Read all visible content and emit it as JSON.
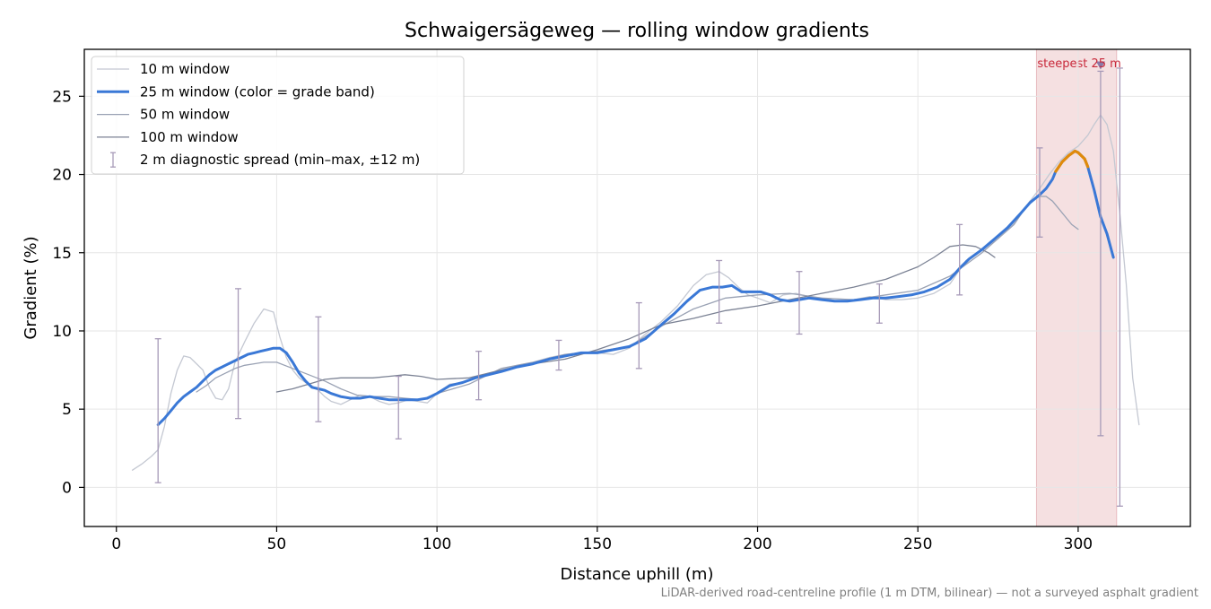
{
  "chart_data": {
    "type": "line",
    "title": "Schwaigersägeweg — rolling window gradients",
    "xlabel": "Distance uphill (m)",
    "ylabel": "Gradient (%)",
    "xlim": [
      -10,
      335
    ],
    "ylim": [
      -2.5,
      28
    ],
    "xticks": [
      0,
      50,
      100,
      150,
      200,
      250,
      300
    ],
    "yticks": [
      0,
      5,
      10,
      15,
      20,
      25
    ],
    "grid": true,
    "legend_position": "upper-left",
    "footnote": "LiDAR-derived road-centreline profile (1 m DTM, bilinear) — not a surveyed asphalt gradient",
    "highlight": {
      "label": "steepest 25 m",
      "x_range": [
        287,
        312
      ],
      "marker_x": 307,
      "marker_y": 27,
      "color": "#e8b4b8"
    },
    "series": [
      {
        "name": "10 m window",
        "color": "#c4c8d2",
        "width": 1.3,
        "x": [
          5,
          8,
          11,
          13,
          15,
          17,
          19,
          21,
          23,
          25,
          27,
          29,
          31,
          33,
          35,
          37,
          40,
          43,
          46,
          49,
          51,
          53,
          55,
          57,
          59,
          61,
          63,
          65,
          67,
          70,
          73,
          76,
          79,
          82,
          85,
          88,
          91,
          94,
          97,
          100,
          104,
          108,
          112,
          116,
          120,
          125,
          130,
          135,
          140,
          145,
          150,
          155,
          160,
          165,
          170,
          175,
          180,
          184,
          188,
          191,
          194,
          197,
          200,
          204,
          208,
          212,
          216,
          220,
          225,
          230,
          235,
          240,
          245,
          250,
          255,
          260,
          265,
          270,
          275,
          280,
          285,
          288,
          291,
          294,
          297,
          300,
          303,
          305,
          307,
          309,
          311,
          313,
          315,
          317,
          319
        ],
        "y": [
          1.1,
          1.5,
          2.0,
          2.4,
          3.9,
          6.0,
          7.5,
          8.4,
          8.3,
          7.9,
          7.5,
          6.4,
          5.7,
          5.6,
          6.3,
          8.0,
          9.3,
          10.5,
          11.4,
          11.2,
          9.6,
          8.3,
          7.5,
          7.0,
          6.7,
          6.5,
          6.2,
          5.8,
          5.5,
          5.3,
          5.6,
          5.9,
          5.8,
          5.5,
          5.3,
          5.4,
          5.6,
          5.5,
          5.4,
          6.0,
          6.6,
          6.7,
          7.0,
          7.3,
          7.5,
          7.8,
          8.0,
          8.3,
          8.5,
          8.6,
          8.6,
          8.5,
          8.9,
          9.8,
          10.6,
          11.6,
          12.9,
          13.6,
          13.8,
          13.4,
          12.8,
          12.3,
          12.1,
          11.8,
          12.3,
          12.4,
          12.2,
          12.1,
          11.9,
          12.0,
          12.2,
          12.0,
          12.0,
          12.1,
          12.4,
          13.0,
          14.5,
          15.2,
          15.9,
          16.9,
          18.3,
          19.1,
          20.0,
          20.8,
          21.4,
          21.8,
          22.5,
          23.2,
          23.8,
          23.2,
          21.5,
          17.5,
          13.0,
          7.0,
          4.0
        ]
      },
      {
        "name": "25 m window (color = grade band)",
        "color": "#3a78d6",
        "band_color": "#e08a0a",
        "band_x_range": [
          293,
          303
        ],
        "width": 3,
        "x": [
          13,
          15,
          17,
          19,
          21,
          23,
          25,
          27,
          29,
          31,
          33,
          35,
          37,
          39,
          41,
          43,
          45,
          47,
          49,
          51,
          53,
          55,
          57,
          59,
          61,
          63,
          65,
          67,
          70,
          73,
          76,
          79,
          82,
          85,
          88,
          91,
          94,
          97,
          100,
          104,
          108,
          112,
          116,
          120,
          125,
          130,
          135,
          140,
          145,
          150,
          155,
          160,
          165,
          170,
          174,
          178,
          182,
          186,
          189,
          192,
          195,
          198,
          201,
          204,
          207,
          210,
          213,
          216,
          220,
          224,
          228,
          232,
          236,
          240,
          244,
          248,
          252,
          256,
          260,
          263,
          266,
          270,
          274,
          278,
          282,
          285,
          288,
          290,
          292,
          293,
          295,
          297,
          299,
          300,
          302,
          303,
          305,
          307,
          309,
          311
        ],
        "y": [
          4.0,
          4.4,
          4.9,
          5.4,
          5.8,
          6.1,
          6.4,
          6.8,
          7.2,
          7.5,
          7.7,
          7.9,
          8.1,
          8.3,
          8.5,
          8.6,
          8.7,
          8.8,
          8.9,
          8.9,
          8.6,
          8.0,
          7.3,
          6.8,
          6.4,
          6.3,
          6.2,
          6.0,
          5.8,
          5.7,
          5.7,
          5.8,
          5.7,
          5.6,
          5.6,
          5.6,
          5.6,
          5.7,
          6.0,
          6.5,
          6.7,
          7.0,
          7.2,
          7.4,
          7.7,
          7.9,
          8.2,
          8.4,
          8.6,
          8.6,
          8.8,
          9.0,
          9.5,
          10.4,
          11.1,
          11.9,
          12.6,
          12.8,
          12.8,
          12.9,
          12.5,
          12.5,
          12.5,
          12.3,
          12.0,
          11.9,
          12.0,
          12.1,
          12.0,
          11.9,
          11.9,
          12.0,
          12.1,
          12.1,
          12.2,
          12.3,
          12.5,
          12.8,
          13.3,
          14.0,
          14.6,
          15.2,
          15.9,
          16.6,
          17.5,
          18.2,
          18.7,
          19.1,
          19.7,
          20.2,
          20.8,
          21.2,
          21.5,
          21.4,
          21.0,
          20.5,
          19.0,
          17.3,
          16.2,
          14.7
        ]
      },
      {
        "name": "50 m window",
        "color": "#9aa2b4",
        "width": 1.3,
        "x": [
          25,
          28,
          31,
          34,
          37,
          40,
          43,
          46,
          50,
          55,
          60,
          65,
          70,
          75,
          80,
          85,
          90,
          95,
          100,
          110,
          120,
          130,
          140,
          150,
          160,
          170,
          180,
          190,
          200,
          210,
          220,
          230,
          240,
          250,
          260,
          270,
          280,
          285,
          288,
          290,
          292,
          294,
          296,
          298,
          300
        ],
        "y": [
          6.1,
          6.5,
          7.0,
          7.3,
          7.6,
          7.8,
          7.9,
          8.0,
          8.0,
          7.6,
          7.2,
          6.8,
          6.3,
          5.9,
          5.8,
          5.8,
          5.7,
          5.6,
          6.0,
          6.6,
          7.6,
          8.0,
          8.5,
          8.7,
          9.0,
          10.3,
          11.4,
          12.1,
          12.3,
          12.4,
          12.1,
          12.0,
          12.3,
          12.6,
          13.5,
          15.0,
          16.8,
          18.3,
          18.6,
          18.6,
          18.3,
          17.8,
          17.3,
          16.8,
          16.5
        ]
      },
      {
        "name": "100 m window",
        "color": "#7b8294",
        "width": 1.3,
        "x": [
          50,
          55,
          60,
          65,
          70,
          75,
          80,
          85,
          90,
          95,
          100,
          110,
          120,
          130,
          140,
          150,
          160,
          170,
          180,
          190,
          200,
          210,
          220,
          230,
          240,
          250,
          255,
          260,
          264,
          268,
          272,
          274
        ],
        "y": [
          6.1,
          6.3,
          6.6,
          6.9,
          7.0,
          7.0,
          7.0,
          7.1,
          7.2,
          7.1,
          6.9,
          7.0,
          7.5,
          7.9,
          8.2,
          8.8,
          9.5,
          10.4,
          10.8,
          11.3,
          11.6,
          12.0,
          12.4,
          12.8,
          13.3,
          14.1,
          14.7,
          15.4,
          15.5,
          15.4,
          15.0,
          14.7
        ]
      }
    ],
    "diagnostic_spread": {
      "name": "2 m diagnostic spread (min–max, ±12 m)",
      "color": "#a79ab8",
      "points": [
        {
          "x": 13,
          "min": 0.3,
          "max": 9.5
        },
        {
          "x": 38,
          "min": 4.4,
          "max": 12.7
        },
        {
          "x": 63,
          "min": 4.2,
          "max": 10.9
        },
        {
          "x": 88,
          "min": 3.1,
          "max": 7.1
        },
        {
          "x": 113,
          "min": 5.6,
          "max": 8.7
        },
        {
          "x": 138,
          "min": 7.5,
          "max": 9.4
        },
        {
          "x": 163,
          "min": 7.6,
          "max": 11.8
        },
        {
          "x": 188,
          "min": 10.5,
          "max": 14.5
        },
        {
          "x": 213,
          "min": 9.8,
          "max": 13.8
        },
        {
          "x": 238,
          "min": 10.5,
          "max": 13.0
        },
        {
          "x": 263,
          "min": 12.3,
          "max": 16.8
        },
        {
          "x": 288,
          "min": 16.0,
          "max": 21.7
        },
        {
          "x": 307,
          "min": 3.3,
          "max": 26.6
        },
        {
          "x": 313,
          "min": -1.2,
          "max": 26.8
        }
      ]
    }
  }
}
